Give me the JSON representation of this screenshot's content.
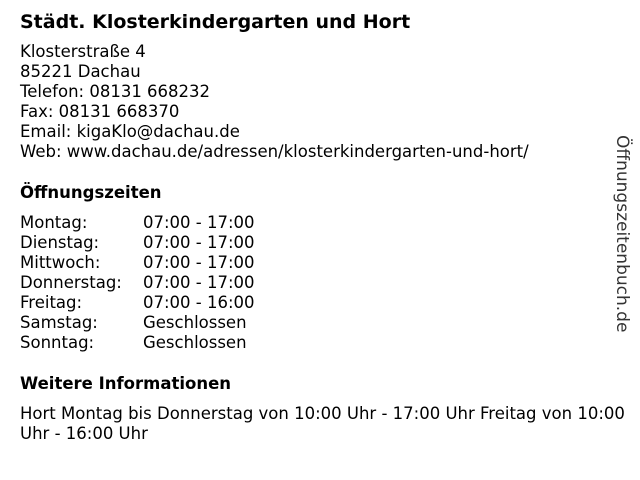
{
  "title": "Städt. Klosterkindergarten und Hort",
  "address": [
    "Klosterstraße 4",
    "85221 Dachau",
    "Telefon: 08131 668232",
    "Fax: 08131 668370",
    "Email: kigaKlo@dachau.de",
    "Web: www.dachau.de/adressen/klosterkindergarten-und-hort/"
  ],
  "hours_heading": "Öffnungszeiten",
  "hours": [
    {
      "day": "Montag:",
      "time": "07:00 - 17:00"
    },
    {
      "day": "Dienstag:",
      "time": "07:00 - 17:00"
    },
    {
      "day": "Mittwoch:",
      "time": "07:00 - 17:00"
    },
    {
      "day": "Donnerstag:",
      "time": "07:00 - 17:00"
    },
    {
      "day": "Freitag:",
      "time": "07:00 - 16:00"
    },
    {
      "day": "Samstag:",
      "time": "Geschlossen"
    },
    {
      "day": "Sonntag:",
      "time": "Geschlossen"
    }
  ],
  "info_heading": "Weitere Informationen",
  "info_text": "Hort Montag bis Donnerstag von 10:00 Uhr - 17:00 Uhr Freitag von 10:00 Uhr - 16:00 Uhr",
  "watermark": "Öffnungszeitenbuch.de"
}
